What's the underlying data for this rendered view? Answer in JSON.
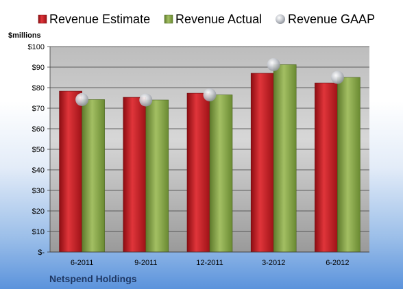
{
  "chart_data": {
    "type": "bar",
    "company": "Netspend Holdings",
    "unit_label": "$millions",
    "categories": [
      "6-2011",
      "9-2011",
      "12-2011",
      "3-2012",
      "6-2012"
    ],
    "series": [
      {
        "name": "Revenue Estimate",
        "kind": "bar",
        "color": "#c0171c",
        "values": [
          78.3,
          75.3,
          77.3,
          87.0,
          82.3
        ]
      },
      {
        "name": "Revenue Actual",
        "kind": "bar",
        "color": "#7f9e3e",
        "values": [
          74.2,
          74.0,
          76.5,
          91.2,
          85.0
        ]
      },
      {
        "name": "Revenue GAAP",
        "kind": "marker",
        "color": "#b9bcc2",
        "values": [
          74.2,
          74.0,
          76.5,
          91.2,
          85.0
        ]
      }
    ],
    "y_ticks": [
      "$-",
      "$10",
      "$20",
      "$30",
      "$40",
      "$50",
      "$60",
      "$70",
      "$80",
      "$90",
      "$100"
    ],
    "ylim": [
      0,
      100
    ],
    "grid": true,
    "legend_position": "top"
  }
}
